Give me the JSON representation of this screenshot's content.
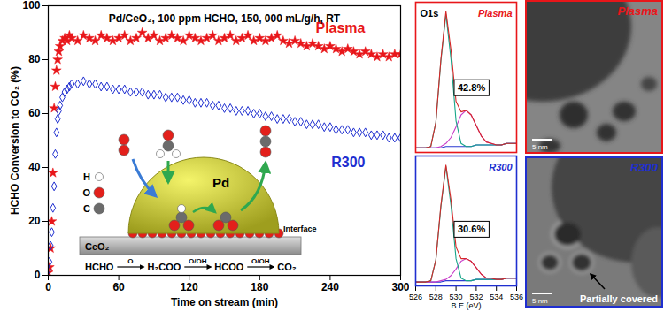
{
  "chart_data": [
    {
      "type": "scatter",
      "title": "Pd/CeO₂, 100 ppm HCHO, 150, 000 mL/g/h, RT",
      "xlabel": "Time on stream (min)",
      "ylabel": "HCHO Conversion to CO₂ (%)",
      "x": [
        0,
        1,
        2,
        3,
        4,
        5,
        6,
        7,
        8,
        9,
        10,
        12,
        14,
        16,
        18,
        20,
        25,
        30,
        35,
        40,
        45,
        50,
        55,
        60,
        65,
        70,
        75,
        80,
        85,
        90,
        95,
        100,
        105,
        110,
        115,
        120,
        125,
        130,
        135,
        140,
        145,
        150,
        155,
        160,
        165,
        170,
        175,
        180,
        185,
        190,
        195,
        200,
        205,
        210,
        215,
        220,
        225,
        230,
        235,
        240,
        245,
        250,
        255,
        260,
        265,
        270,
        275,
        280,
        285,
        290,
        295,
        300
      ],
      "series": [
        {
          "name": "Plasma",
          "color": "#e8161a",
          "marker": "star",
          "values": [
            1,
            3,
            10,
            20,
            38,
            62,
            70,
            76,
            80,
            83,
            85,
            87,
            88,
            87,
            89,
            88,
            87,
            89,
            88,
            87,
            89,
            88,
            87,
            88,
            89,
            87,
            88,
            90,
            88,
            89,
            87,
            88,
            89,
            88,
            87,
            89,
            88,
            87,
            88,
            89,
            87,
            88,
            89,
            87,
            88,
            89,
            87,
            88,
            87,
            88,
            89,
            87,
            86,
            87,
            86,
            85,
            86,
            85,
            84,
            85,
            84,
            83,
            84,
            83,
            82,
            83,
            82,
            81,
            82,
            81,
            82,
            82
          ]
        },
        {
          "name": "R300",
          "color": "#1f2fd0",
          "marker": "diamond_open",
          "values": [
            2,
            5,
            11,
            16,
            25,
            33,
            45,
            53,
            58,
            61,
            63,
            66,
            68,
            69,
            70,
            71,
            71,
            72,
            71,
            71,
            70,
            70,
            69,
            69,
            69,
            68,
            68,
            68,
            67,
            67,
            67,
            66,
            66,
            66,
            65,
            65,
            64,
            64,
            64,
            63,
            63,
            62,
            62,
            61,
            61,
            61,
            60,
            60,
            59,
            59,
            58,
            58,
            58,
            57,
            57,
            56,
            56,
            56,
            55,
            55,
            54,
            54,
            54,
            53,
            53,
            53,
            52,
            52,
            52,
            51,
            51,
            51
          ]
        }
      ],
      "xlim": [
        0,
        300
      ],
      "xticks": [
        0,
        60,
        120,
        180,
        240,
        300
      ],
      "ylim": [
        0,
        100
      ],
      "yticks": [
        0,
        20,
        40,
        60,
        80,
        100
      ]
    },
    {
      "type": "line",
      "title": "O1s",
      "sample": {
        "text": "Plasma",
        "color": "#e8161a"
      },
      "annotation": "42.8%",
      "x": [
        526,
        526.5,
        527,
        527.5,
        528,
        528.5,
        529,
        529.5,
        530,
        530.5,
        531,
        531.5,
        532,
        532.5,
        533,
        533.5,
        534,
        534.5,
        535,
        535.5,
        536
      ],
      "series": [
        {
          "color": "#2b3bd1",
          "values": [
            3,
            3,
            3,
            3,
            3,
            3,
            4,
            4,
            4,
            4,
            4,
            4,
            5,
            5,
            5,
            5,
            5,
            5,
            6,
            6,
            6
          ]
        },
        {
          "color": "#c83cc8",
          "values": [
            3,
            3,
            3,
            3,
            3,
            4,
            6,
            10,
            17,
            25,
            28,
            25,
            18,
            11,
            7,
            6,
            5,
            5,
            6,
            6,
            6
          ]
        },
        {
          "color": "#17a589",
          "values": [
            3,
            3,
            3,
            4,
            20,
            61,
            92,
            62,
            21,
            6,
            4,
            4,
            5,
            5,
            5,
            5,
            5,
            5,
            6,
            6,
            6
          ]
        },
        {
          "color": "#d62728",
          "values": [
            3,
            3,
            3,
            4,
            20,
            62,
            94,
            68,
            34,
            27,
            28,
            25,
            18,
            11,
            7,
            6,
            5,
            5,
            6,
            6,
            6
          ]
        }
      ],
      "xlim": [
        526,
        536
      ],
      "xticks": [
        526,
        528,
        530,
        532,
        534,
        536
      ],
      "ylim": [
        0,
        100
      ],
      "yticks": [],
      "tick_labels": false
    },
    {
      "type": "line",
      "sample": {
        "text": "R300",
        "color": "#1f2fd0"
      },
      "annotation": "30.6%",
      "xlabel": "B.E.(eV)",
      "x": [
        526,
        526.5,
        527,
        527.5,
        528,
        528.5,
        529,
        529.5,
        530,
        530.5,
        531,
        531.5,
        532,
        532.5,
        533,
        533.5,
        534,
        534.5,
        535,
        535.5,
        536
      ],
      "series": [
        {
          "color": "#2b3bd1",
          "values": [
            3,
            3,
            3,
            3,
            3,
            3,
            4,
            4,
            4,
            4,
            4,
            4,
            5,
            5,
            5,
            5,
            5,
            5,
            6,
            6,
            6
          ]
        },
        {
          "color": "#c83cc8",
          "values": [
            3,
            3,
            3,
            3,
            3,
            4,
            5,
            8,
            13,
            19,
            21,
            19,
            14,
            9,
            6,
            6,
            5,
            5,
            6,
            6,
            6
          ]
        },
        {
          "color": "#17a589",
          "values": [
            3,
            3,
            3,
            4,
            20,
            61,
            92,
            62,
            21,
            6,
            4,
            4,
            5,
            5,
            5,
            5,
            5,
            5,
            6,
            6,
            6
          ]
        },
        {
          "color": "#d62728",
          "values": [
            3,
            3,
            3,
            4,
            20,
            62,
            93,
            66,
            30,
            21,
            21,
            19,
            14,
            9,
            6,
            6,
            5,
            5,
            6,
            6,
            6
          ]
        }
      ],
      "xlim": [
        526,
        536
      ],
      "xticks": [
        526,
        528,
        530,
        532,
        534,
        536
      ],
      "ylim": [
        0,
        100
      ],
      "yticks": [],
      "tick_labels": "x"
    }
  ],
  "inset_diagram": {
    "atoms": [
      "H",
      "O",
      "C"
    ],
    "particle": "Pd",
    "support": "CeO₂",
    "interface": "Interface",
    "pathway": [
      "HCHO",
      "H₂COO",
      "HCOO",
      "CO₂"
    ],
    "steps": [
      "O",
      "O/OH",
      "O/OH"
    ]
  },
  "tem_images": [
    {
      "label": "Plasma",
      "color": "#e8161a",
      "scale_bar": "5 nm"
    },
    {
      "label": "R300",
      "color": "#1f2fd0",
      "scale_bar": "5 nm",
      "annotation": "Partially covered"
    }
  ]
}
